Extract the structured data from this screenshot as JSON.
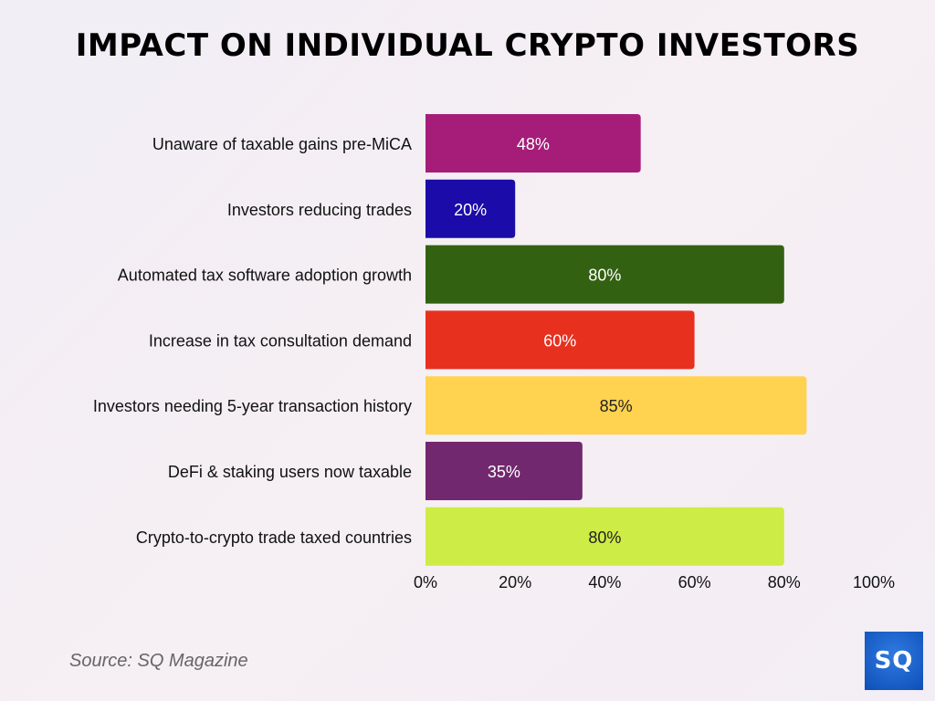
{
  "chart_data": {
    "type": "bar",
    "orientation": "horizontal",
    "title": "IMPACT ON INDIVIDUAL CRYPTO INVESTORS",
    "categories": [
      "Unaware of taxable gains pre-MiCA",
      "Investors reducing trades",
      "Automated tax software adoption growth",
      "Increase in tax consultation demand",
      "Investors needing 5-year transaction history",
      "DeFi & staking users now taxable",
      "Crypto-to-crypto trade taxed countries"
    ],
    "values": [
      48,
      20,
      80,
      60,
      85,
      35,
      80
    ],
    "data_labels": [
      "48%",
      "20%",
      "80%",
      "60%",
      "85%",
      "35%",
      "80%"
    ],
    "colors": [
      "#A61D79",
      "#1B0BA8",
      "#336112",
      "#E8301F",
      "#FFD24F",
      "#72286E",
      "#CDEC45"
    ],
    "label_colors": [
      "#ffffff",
      "#ffffff",
      "#ffffff",
      "#ffffff",
      "#222222",
      "#ffffff",
      "#222222"
    ],
    "xlim": [
      0,
      100
    ],
    "xticks": [
      0,
      20,
      40,
      60,
      80,
      100
    ],
    "xtick_labels": [
      "0%",
      "20%",
      "40%",
      "60%",
      "80%",
      "100%"
    ],
    "xlabel": "",
    "ylabel": "",
    "grid": false,
    "legend": "none"
  },
  "source": "Source: SQ Magazine",
  "logo_text": "SQ"
}
